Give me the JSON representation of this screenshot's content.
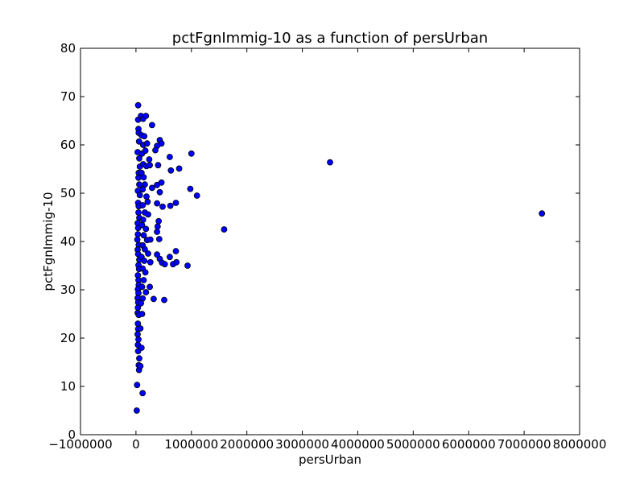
{
  "chart_data": {
    "type": "scatter",
    "title": "pctFgnImmig-10 as a function of persUrban",
    "xlabel": "persUrban",
    "ylabel": "pctFgnImmig-10",
    "xlim": [
      -1000000,
      8000000
    ],
    "ylim": [
      0,
      80
    ],
    "x_ticks": [
      -1000000,
      0,
      1000000,
      2000000,
      3000000,
      4000000,
      5000000,
      6000000,
      7000000,
      8000000
    ],
    "x_tick_labels": [
      "−1000000",
      "0",
      "1000000",
      "2000000",
      "3000000",
      "4000000",
      "5000000",
      "6000000",
      "7000000",
      "8000000"
    ],
    "y_ticks": [
      0,
      10,
      20,
      30,
      40,
      50,
      60,
      70,
      80
    ],
    "y_tick_labels": [
      "0",
      "10",
      "20",
      "30",
      "40",
      "50",
      "60",
      "70",
      "80"
    ],
    "grid": false,
    "marker_color": "#0000ff",
    "marker_edge_color": "#000000",
    "points": [
      [
        40000,
        68.2
      ],
      [
        40000,
        65.2
      ],
      [
        45000,
        63.3
      ],
      [
        50000,
        62.5
      ],
      [
        55000,
        60.7
      ],
      [
        30000,
        58.5
      ],
      [
        60000,
        57.2
      ],
      [
        70000,
        55.5
      ],
      [
        50000,
        54.2
      ],
      [
        45000,
        53.2
      ],
      [
        60000,
        51.8
      ],
      [
        35000,
        50.5
      ],
      [
        70000,
        49.6
      ],
      [
        40000,
        48.0
      ],
      [
        50000,
        47.3
      ],
      [
        45000,
        46.0
      ],
      [
        60000,
        44.9
      ],
      [
        30000,
        43.8
      ],
      [
        40000,
        42.8
      ],
      [
        35000,
        41.5
      ],
      [
        25000,
        40.4
      ],
      [
        50000,
        39.3
      ],
      [
        30000,
        38.3
      ],
      [
        40000,
        37.4
      ],
      [
        60000,
        36.2
      ],
      [
        45000,
        35.1
      ],
      [
        55000,
        34.3
      ],
      [
        35000,
        33.0
      ],
      [
        45000,
        32.0
      ],
      [
        50000,
        31.0
      ],
      [
        35000,
        30.1
      ],
      [
        45000,
        29.3
      ],
      [
        30000,
        28.3
      ],
      [
        40000,
        27.4
      ],
      [
        35000,
        26.3
      ],
      [
        30000,
        25.2
      ],
      [
        50000,
        24.8
      ],
      [
        35000,
        23.0
      ],
      [
        40000,
        21.9
      ],
      [
        30000,
        20.8
      ],
      [
        45000,
        19.7
      ],
      [
        35000,
        18.6
      ],
      [
        40000,
        17.3
      ],
      [
        60000,
        15.8
      ],
      [
        50000,
        14.4
      ],
      [
        55000,
        13.4
      ],
      [
        20000,
        10.3
      ],
      [
        120000,
        8.6
      ],
      [
        15000,
        5.0
      ],
      [
        90000,
        66.0
      ],
      [
        130000,
        65.4
      ],
      [
        180000,
        66.0
      ],
      [
        100000,
        62.0
      ],
      [
        150000,
        61.8
      ],
      [
        130000,
        60.0
      ],
      [
        200000,
        60.3
      ],
      [
        110000,
        58.2
      ],
      [
        170000,
        58.8
      ],
      [
        240000,
        57.0
      ],
      [
        130000,
        56.0
      ],
      [
        190000,
        55.6
      ],
      [
        250000,
        55.8
      ],
      [
        100000,
        54.2
      ],
      [
        140000,
        53.3
      ],
      [
        160000,
        51.8
      ],
      [
        120000,
        50.8
      ],
      [
        190000,
        49.3
      ],
      [
        210000,
        48.2
      ],
      [
        120000,
        47.5
      ],
      [
        160000,
        46.0
      ],
      [
        220000,
        45.6
      ],
      [
        130000,
        44.5
      ],
      [
        110000,
        43.4
      ],
      [
        180000,
        42.6
      ],
      [
        140000,
        41.3
      ],
      [
        200000,
        40.3
      ],
      [
        260000,
        40.4
      ],
      [
        120000,
        39.2
      ],
      [
        160000,
        38.4
      ],
      [
        220000,
        37.5
      ],
      [
        100000,
        36.8
      ],
      [
        150000,
        36.0
      ],
      [
        260000,
        35.7
      ],
      [
        120000,
        34.4
      ],
      [
        170000,
        33.6
      ],
      [
        140000,
        32.0
      ],
      [
        110000,
        30.6
      ],
      [
        250000,
        30.6
      ],
      [
        180000,
        29.5
      ],
      [
        120000,
        28.2
      ],
      [
        90000,
        27.2
      ],
      [
        110000,
        25.0
      ],
      [
        80000,
        22.0
      ],
      [
        100000,
        18.0
      ],
      [
        80000,
        14.2
      ],
      [
        290000,
        64.1
      ],
      [
        430000,
        61.0
      ],
      [
        460000,
        60.3
      ],
      [
        380000,
        59.8
      ],
      [
        350000,
        58.9
      ],
      [
        610000,
        57.5
      ],
      [
        400000,
        55.8
      ],
      [
        780000,
        55.1
      ],
      [
        630000,
        54.7
      ],
      [
        460000,
        52.2
      ],
      [
        380000,
        51.7
      ],
      [
        290000,
        51.1
      ],
      [
        430000,
        50.2
      ],
      [
        980000,
        50.9
      ],
      [
        1100000,
        49.5
      ],
      [
        720000,
        48.0
      ],
      [
        620000,
        47.4
      ],
      [
        480000,
        47.2
      ],
      [
        380000,
        47.9
      ],
      [
        410000,
        44.2
      ],
      [
        390000,
        43.1
      ],
      [
        380000,
        42.0
      ],
      [
        420000,
        40.5
      ],
      [
        1000000,
        58.2
      ],
      [
        720000,
        38.0
      ],
      [
        380000,
        37.3
      ],
      [
        610000,
        36.8
      ],
      [
        430000,
        36.4
      ],
      [
        470000,
        35.6
      ],
      [
        520000,
        35.3
      ],
      [
        670000,
        35.3
      ],
      [
        730000,
        35.7
      ],
      [
        930000,
        35.0
      ],
      [
        320000,
        28.1
      ],
      [
        510000,
        27.9
      ],
      [
        1590000,
        42.5
      ],
      [
        3500000,
        56.4
      ],
      [
        7320000,
        45.8
      ]
    ]
  }
}
